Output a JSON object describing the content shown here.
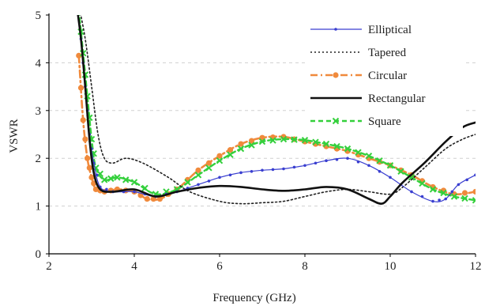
{
  "chart_data": {
    "type": "line",
    "xlabel": "Frequency (GHz)",
    "ylabel": "VSWR",
    "xlim": [
      2,
      12
    ],
    "ylim": [
      0,
      5
    ],
    "x_ticks": [
      "2",
      "4",
      "6",
      "8",
      "10",
      "12"
    ],
    "y_ticks": [
      "0",
      "1",
      "2",
      "3",
      "4",
      "5"
    ],
    "grid": "horizontal dashed at 1, 2, 3, 4",
    "legend_position": "top-right",
    "series": [
      {
        "name": "Elliptical",
        "color": "#3a3fd0",
        "style": "thin-line-dot-markers",
        "points": [
          [
            2.65,
            5.2
          ],
          [
            2.75,
            4.5
          ],
          [
            2.85,
            3.5
          ],
          [
            2.95,
            2.5
          ],
          [
            3.05,
            1.9
          ],
          [
            3.2,
            1.4
          ],
          [
            3.5,
            1.3
          ],
          [
            4.0,
            1.3
          ],
          [
            4.5,
            1.2
          ],
          [
            5.0,
            1.3
          ],
          [
            5.5,
            1.45
          ],
          [
            6.0,
            1.6
          ],
          [
            6.5,
            1.7
          ],
          [
            7.0,
            1.75
          ],
          [
            7.5,
            1.78
          ],
          [
            8.0,
            1.85
          ],
          [
            8.5,
            1.95
          ],
          [
            9.0,
            2.0
          ],
          [
            9.5,
            1.85
          ],
          [
            10.0,
            1.6
          ],
          [
            10.5,
            1.3
          ],
          [
            11.0,
            1.1
          ],
          [
            11.3,
            1.15
          ],
          [
            11.6,
            1.45
          ],
          [
            12.0,
            1.65
          ]
        ]
      },
      {
        "name": "Tapered",
        "color": "#222222",
        "style": "dotted",
        "points": [
          [
            2.7,
            5.2
          ],
          [
            2.85,
            4.5
          ],
          [
            3.0,
            3.5
          ],
          [
            3.15,
            2.5
          ],
          [
            3.3,
            2.0
          ],
          [
            3.5,
            1.9
          ],
          [
            3.8,
            2.0
          ],
          [
            4.2,
            1.9
          ],
          [
            4.8,
            1.6
          ],
          [
            5.3,
            1.3
          ],
          [
            6.0,
            1.1
          ],
          [
            6.5,
            1.05
          ],
          [
            7.0,
            1.07
          ],
          [
            7.5,
            1.1
          ],
          [
            8.0,
            1.2
          ],
          [
            8.5,
            1.3
          ],
          [
            9.0,
            1.35
          ],
          [
            9.5,
            1.3
          ],
          [
            10.0,
            1.25
          ],
          [
            10.3,
            1.4
          ],
          [
            10.8,
            1.8
          ],
          [
            11.3,
            2.2
          ],
          [
            11.7,
            2.4
          ],
          [
            12.0,
            2.5
          ]
        ]
      },
      {
        "name": "Circular",
        "color": "#f08a3c",
        "style": "dashdot-circle-markers",
        "points": [
          [
            2.7,
            4.15
          ],
          [
            2.8,
            2.8
          ],
          [
            2.9,
            2.0
          ],
          [
            3.0,
            1.6
          ],
          [
            3.1,
            1.35
          ],
          [
            3.3,
            1.3
          ],
          [
            3.6,
            1.35
          ],
          [
            4.0,
            1.3
          ],
          [
            4.3,
            1.15
          ],
          [
            4.6,
            1.15
          ],
          [
            5.0,
            1.35
          ],
          [
            5.5,
            1.75
          ],
          [
            6.0,
            2.05
          ],
          [
            6.5,
            2.3
          ],
          [
            7.0,
            2.43
          ],
          [
            7.5,
            2.45
          ],
          [
            8.0,
            2.35
          ],
          [
            8.5,
            2.25
          ],
          [
            9.0,
            2.15
          ],
          [
            9.5,
            2.0
          ],
          [
            10.0,
            1.85
          ],
          [
            10.5,
            1.65
          ],
          [
            11.0,
            1.4
          ],
          [
            11.5,
            1.25
          ],
          [
            12.0,
            1.3
          ]
        ]
      },
      {
        "name": "Rectangular",
        "color": "#111111",
        "style": "thick-solid",
        "points": [
          [
            2.65,
            5.2
          ],
          [
            2.75,
            4.5
          ],
          [
            2.85,
            3.5
          ],
          [
            2.95,
            2.4
          ],
          [
            3.05,
            1.7
          ],
          [
            3.2,
            1.35
          ],
          [
            3.5,
            1.3
          ],
          [
            4.0,
            1.35
          ],
          [
            4.5,
            1.2
          ],
          [
            5.0,
            1.3
          ],
          [
            5.5,
            1.38
          ],
          [
            6.0,
            1.42
          ],
          [
            6.5,
            1.4
          ],
          [
            7.0,
            1.35
          ],
          [
            7.5,
            1.32
          ],
          [
            8.0,
            1.35
          ],
          [
            8.5,
            1.4
          ],
          [
            9.0,
            1.35
          ],
          [
            9.5,
            1.15
          ],
          [
            9.8,
            1.05
          ],
          [
            10.0,
            1.2
          ],
          [
            10.3,
            1.5
          ],
          [
            10.8,
            1.9
          ],
          [
            11.3,
            2.35
          ],
          [
            11.7,
            2.65
          ],
          [
            12.0,
            2.75
          ]
        ]
      },
      {
        "name": "Square",
        "color": "#34d03c",
        "style": "dashed-x-markers",
        "points": [
          [
            2.7,
            5.1
          ],
          [
            2.8,
            4.2
          ],
          [
            2.9,
            3.3
          ],
          [
            3.0,
            2.4
          ],
          [
            3.1,
            1.8
          ],
          [
            3.3,
            1.55
          ],
          [
            3.6,
            1.6
          ],
          [
            4.0,
            1.5
          ],
          [
            4.5,
            1.25
          ],
          [
            5.0,
            1.35
          ],
          [
            5.5,
            1.65
          ],
          [
            6.0,
            1.95
          ],
          [
            6.5,
            2.2
          ],
          [
            7.0,
            2.35
          ],
          [
            7.5,
            2.4
          ],
          [
            8.0,
            2.38
          ],
          [
            8.5,
            2.3
          ],
          [
            9.0,
            2.2
          ],
          [
            9.5,
            2.05
          ],
          [
            10.0,
            1.85
          ],
          [
            10.5,
            1.6
          ],
          [
            11.0,
            1.35
          ],
          [
            11.5,
            1.2
          ],
          [
            12.0,
            1.12
          ]
        ]
      }
    ]
  }
}
